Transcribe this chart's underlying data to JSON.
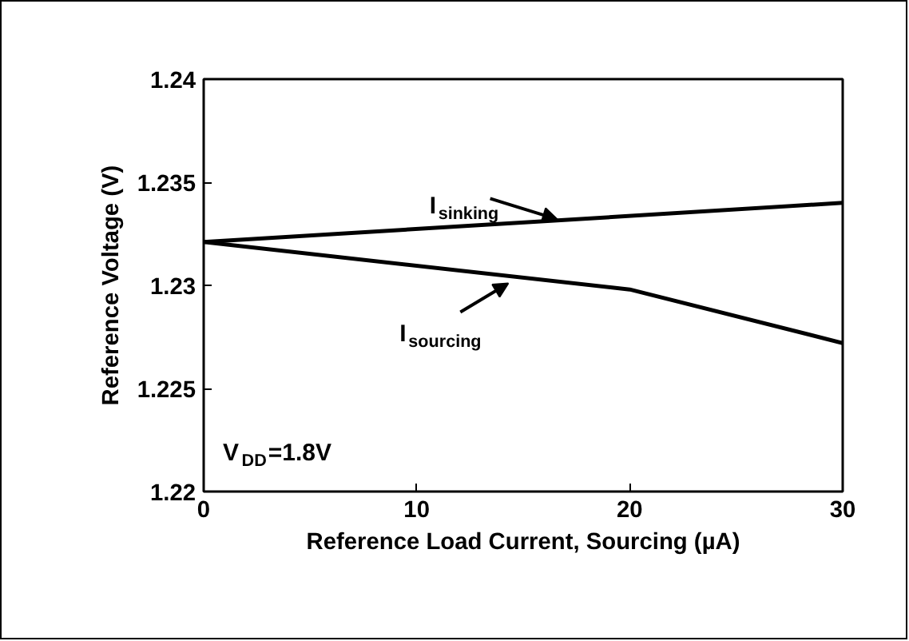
{
  "chart_data": {
    "type": "line",
    "xlabel": "Reference Load Current, Sourcing (µA)",
    "ylabel": "Reference Voltage (V)",
    "xlim": [
      0,
      30
    ],
    "xticks": [
      0,
      10,
      20,
      30
    ],
    "ylim": [
      1.22,
      1.24
    ],
    "yticks": [
      {
        "value": 1.22,
        "label": "1.22"
      },
      {
        "value": 1.225,
        "label": "1.225"
      },
      {
        "value": 1.23,
        "label": "1.23"
      },
      {
        "value": 1.235,
        "label": "1.235"
      },
      {
        "value": 1.24,
        "label": "1.24"
      }
    ],
    "grid": false,
    "marker": "none",
    "line_style": "solid",
    "series": [
      {
        "color": "#000000",
        "x": [
          0,
          30
        ],
        "values": [
          1.2321,
          1.234
        ]
      },
      {
        "color": "#000000",
        "x": [
          0,
          20,
          30
        ],
        "values": [
          1.2321,
          1.2298,
          1.2272
        ]
      }
    ],
    "annotations": [
      {
        "text": "I$_{sinking}$",
        "x": 16.6,
        "y": 1.2332
      },
      {
        "text": "I$_{sourcing}$",
        "x": 14.3,
        "y": 1.2301
      },
      "V$_{DD}$=1.8V"
    ]
  }
}
